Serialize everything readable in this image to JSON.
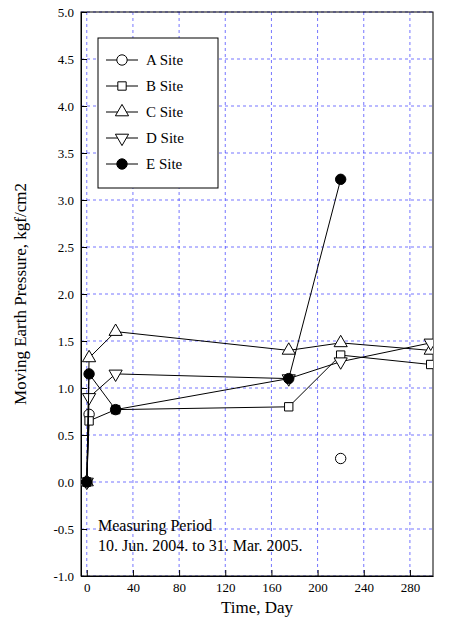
{
  "chart_data": {
    "type": "line",
    "x_label": "Time, Day",
    "y_label": "Moving Earth Pressure, kgf/cm2",
    "annotations": [
      "Measuring Period",
      "10. Jun. 2004. to 31. Mar. 2005."
    ],
    "x": [
      0,
      2,
      25,
      175,
      220,
      298
    ],
    "series": [
      {
        "name": "A Site",
        "color": "#000000",
        "marker": "circle",
        "values": [
          0,
          0.72,
          null,
          null,
          0.25,
          null
        ]
      },
      {
        "name": "B Site",
        "color": "#000000",
        "marker": "square",
        "values": [
          0,
          0.65,
          0.77,
          0.8,
          1.35,
          1.25
        ]
      },
      {
        "name": "C Site",
        "color": "#000000",
        "marker": "triangle-up",
        "values": [
          0,
          1.32,
          1.6,
          1.4,
          1.48,
          1.4
        ]
      },
      {
        "name": "D Site",
        "color": "#000000",
        "marker": "triangle-down",
        "values": [
          0,
          0.9,
          1.15,
          1.1,
          1.28,
          1.48
        ]
      },
      {
        "name": "E Site",
        "color": "#000000",
        "marker": "filled-circle",
        "values": [
          0,
          1.15,
          0.77,
          1.1,
          3.22,
          null
        ]
      }
    ],
    "xlim": [
      -5,
      300
    ],
    "xticks": [
      0,
      40,
      80,
      120,
      160,
      200,
      240,
      280
    ],
    "ylim": [
      -1,
      5
    ],
    "yticks": [
      {
        "value": -1,
        "label": "-1.0"
      },
      -0.5,
      {
        "value": 0,
        "label": "0.0"
      },
      0.5,
      {
        "value": 1,
        "label": "1.0"
      },
      1.5,
      {
        "value": 2,
        "label": "2.0"
      },
      2.5,
      {
        "value": 3,
        "label": "3.0"
      },
      3.5,
      {
        "value": 4,
        "label": "4.0"
      },
      4.5,
      {
        "value": 5,
        "label": "5.0"
      }
    ],
    "grid": true,
    "legend": "upper-left"
  }
}
